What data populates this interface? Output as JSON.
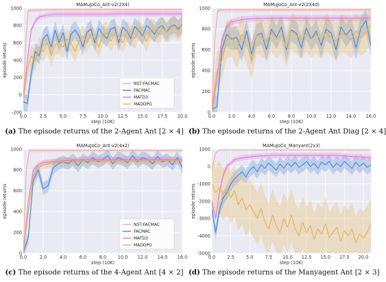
{
  "colors": {
    "nst": "#f4a9a8",
    "facmac": "#4a86d8",
    "matd3": "#e377e2",
    "maddpg": "#e6b24e"
  },
  "chart_data": [
    {
      "type": "line",
      "title": "MAMuJoCo_Ant-v2(2X4)",
      "xlabel": "step (10K)",
      "ylabel": "episode returns",
      "xlim": [
        0,
        20
      ],
      "ylim": [
        -200,
        1000
      ],
      "xticks": [
        "0.0",
        "2.5",
        "5.0",
        "7.5",
        "10.0",
        "12.5",
        "15.0",
        "17.5",
        "20.0"
      ],
      "xtick_values": [
        0,
        2.5,
        5,
        7.5,
        10,
        12.5,
        15,
        17.5,
        20
      ],
      "yticks": [
        "-200",
        "0",
        "200",
        "400",
        "600",
        "800",
        "1000"
      ],
      "ytick_values": [
        -200,
        0,
        200,
        400,
        600,
        800,
        1000
      ],
      "legend": "inside-right",
      "caption_letter": "(a)",
      "caption_text": " The episode returns of the 2-Agent Ant [2 × 4]",
      "series": [
        {
          "name": "NST-FACMAC",
          "color": "nst",
          "band": 20,
          "x": [
            0,
            0.3,
            0.6,
            1,
            2,
            4,
            6,
            8,
            10,
            12,
            14,
            16,
            18,
            20
          ],
          "y": [
            -50,
            600,
            970,
            975,
            980,
            985,
            985,
            985,
            985,
            985,
            985,
            985,
            985,
            985
          ]
        },
        {
          "name": "FACMAC",
          "color": "facmac",
          "band": 100,
          "x": [
            0,
            0.5,
            1,
            1.5,
            2,
            2.5,
            3,
            3.5,
            4,
            4.5,
            5,
            5.5,
            6,
            6.5,
            7,
            7.5,
            8,
            8.5,
            9,
            9.5,
            10,
            10.5,
            11,
            11.5,
            12,
            12.5,
            13,
            13.5,
            14,
            14.5,
            15,
            15.5,
            16,
            16.5,
            17,
            17.5,
            18,
            18.5,
            19,
            19.5,
            20
          ],
          "y": [
            -80,
            -100,
            250,
            500,
            450,
            650,
            700,
            550,
            750,
            600,
            720,
            500,
            700,
            750,
            680,
            550,
            720,
            760,
            600,
            770,
            700,
            650,
            760,
            780,
            600,
            780,
            740,
            650,
            790,
            740,
            680,
            800,
            760,
            700,
            780,
            800,
            720,
            790,
            810,
            760,
            820
          ]
        },
        {
          "name": "MATD3",
          "color": "matd3",
          "band": 30,
          "x": [
            0,
            0.5,
            1,
            1.5,
            2,
            3,
            4,
            6,
            8,
            10,
            12,
            14,
            16,
            18,
            20
          ],
          "y": [
            -60,
            400,
            750,
            850,
            900,
            920,
            930,
            930,
            930,
            930,
            935,
            935,
            935,
            935,
            935
          ]
        },
        {
          "name": "MADDPG",
          "color": "maddpg",
          "band": 120,
          "x": [
            0,
            0.5,
            1,
            1.5,
            2,
            2.5,
            3,
            3.5,
            4,
            4.5,
            5,
            5.5,
            6,
            6.5,
            7,
            7.5,
            8,
            8.5,
            9,
            9.5,
            10,
            10.5,
            11,
            11.5,
            12,
            12.5,
            13,
            13.5,
            14,
            14.5,
            15,
            15.5,
            16,
            16.5,
            17,
            17.5,
            18,
            18.5,
            19,
            19.5,
            20
          ],
          "y": [
            -60,
            300,
            450,
            400,
            550,
            500,
            600,
            450,
            580,
            600,
            550,
            650,
            600,
            500,
            620,
            680,
            600,
            700,
            650,
            550,
            700,
            720,
            620,
            700,
            680,
            600,
            720,
            700,
            650,
            760,
            700,
            620,
            760,
            740,
            700,
            780,
            720,
            760,
            800,
            740,
            820
          ]
        }
      ]
    },
    {
      "type": "line",
      "title": "MAMuJoCo_Ant-v2(2X4d)",
      "xlabel": "step (10K)",
      "ylabel": "episode returns",
      "xlim": [
        0,
        16
      ],
      "ylim": [
        0,
        1000
      ],
      "xticks": [
        "0.0",
        "2.0",
        "4.0",
        "6.0",
        "8.0",
        "10.0",
        "12.0",
        "14.0",
        "16.0"
      ],
      "xtick_values": [
        0,
        2,
        4,
        6,
        8,
        10,
        12,
        14,
        16
      ],
      "yticks": [
        "0",
        "200",
        "400",
        "600",
        "800",
        "1000"
      ],
      "ytick_values": [
        0,
        200,
        400,
        600,
        800,
        1000
      ],
      "caption_letter": "(b)",
      "caption_text": " The episode returns of the 2-Agent Ant Diag [2 × 4]",
      "series": [
        {
          "name": "NST-FACMAC",
          "color": "nst",
          "band": 20,
          "x": [
            0,
            0.3,
            0.6,
            1,
            2,
            4,
            6,
            8,
            10,
            12,
            14,
            16
          ],
          "y": [
            50,
            700,
            980,
            985,
            985,
            985,
            985,
            985,
            985,
            985,
            985,
            985
          ]
        },
        {
          "name": "FACMAC",
          "color": "facmac",
          "band": 110,
          "x": [
            0,
            0.5,
            1,
            1.5,
            2,
            2.5,
            3,
            3.5,
            4,
            4.5,
            5,
            5.5,
            6,
            6.5,
            7,
            7.5,
            8,
            8.5,
            9,
            9.5,
            10,
            10.5,
            11,
            11.5,
            12,
            12.5,
            13,
            13.5,
            14,
            14.5,
            15,
            15.5,
            16
          ],
          "y": [
            30,
            50,
            600,
            750,
            700,
            720,
            600,
            780,
            560,
            740,
            760,
            600,
            800,
            720,
            820,
            600,
            790,
            760,
            620,
            810,
            700,
            780,
            640,
            800,
            760,
            600,
            820,
            740,
            800,
            620,
            810,
            880,
            640
          ]
        },
        {
          "name": "MATD3",
          "color": "matd3",
          "band": 30,
          "x": [
            0,
            0.5,
            1,
            1.5,
            2,
            3,
            4,
            6,
            8,
            10,
            12,
            14,
            16
          ],
          "y": [
            20,
            300,
            700,
            820,
            870,
            890,
            900,
            905,
            905,
            905,
            905,
            905,
            905
          ]
        },
        {
          "name": "MADDPG",
          "color": "maddpg",
          "band": 180,
          "x": [
            0,
            0.5,
            1,
            1.5,
            2,
            2.5,
            3,
            3.5,
            4,
            4.5,
            5,
            5.5,
            6,
            6.5,
            7,
            7.5,
            8,
            8.5,
            9,
            9.5,
            10,
            10.5,
            11,
            11.5,
            12,
            12.5,
            13,
            13.5,
            14,
            14.5,
            15,
            15.5,
            16
          ],
          "y": [
            20,
            400,
            500,
            700,
            720,
            600,
            750,
            650,
            500,
            740,
            720,
            680,
            760,
            700,
            750,
            620,
            780,
            740,
            700,
            760,
            700,
            750,
            690,
            770,
            720,
            680,
            760,
            740,
            700,
            780,
            720,
            760,
            840
          ]
        }
      ]
    },
    {
      "type": "line",
      "title": "MAMuJoCo_Ant-v2(4x2)",
      "xlabel": "step (10K)",
      "ylabel": "episode returns",
      "xlim": [
        0,
        16
      ],
      "ylim": [
        0,
        1000
      ],
      "xticks": [
        "0.0",
        "2.0",
        "4.0",
        "6.0",
        "8.0",
        "10.0",
        "12.0",
        "14.0",
        "16.0"
      ],
      "xtick_values": [
        0,
        2,
        4,
        6,
        8,
        10,
        12,
        14,
        16
      ],
      "yticks": [
        "0",
        "200",
        "400",
        "600",
        "800",
        "1000"
      ],
      "ytick_values": [
        0,
        200,
        400,
        600,
        800,
        1000
      ],
      "legend": "inside-right",
      "caption_letter": "(c)",
      "caption_text": " The episode returns of the 4-Agent Ant [4 × 2]",
      "series": [
        {
          "name": "NST-FACMAC",
          "color": "nst",
          "band": 20,
          "x": [
            0,
            0.3,
            0.6,
            1,
            2,
            4,
            6,
            8,
            10,
            12,
            14,
            16
          ],
          "y": [
            20,
            800,
            990,
            990,
            990,
            990,
            990,
            990,
            990,
            990,
            990,
            990
          ]
        },
        {
          "name": "FACMAC",
          "color": "facmac",
          "band": 60,
          "x": [
            0,
            0.5,
            1,
            1.5,
            2,
            2.5,
            3,
            3.5,
            4,
            4.5,
            5,
            5.5,
            6,
            6.5,
            7,
            7.5,
            8,
            8.5,
            9,
            9.5,
            10,
            10.5,
            11,
            11.5,
            12,
            12.5,
            13,
            13.5,
            14,
            14.5,
            15,
            15.5,
            16
          ],
          "y": [
            10,
            150,
            700,
            800,
            620,
            650,
            820,
            860,
            880,
            860,
            900,
            840,
            900,
            870,
            920,
            880,
            900,
            940,
            860,
            920,
            900,
            870,
            940,
            880,
            920,
            900,
            860,
            930,
            880,
            900,
            850,
            920,
            820
          ]
        },
        {
          "name": "MATD3",
          "color": "matd3",
          "band": 25,
          "x": [
            0,
            0.5,
            1,
            1.5,
            2,
            3,
            4,
            6,
            8,
            10,
            12,
            14,
            16
          ],
          "y": [
            10,
            500,
            800,
            850,
            870,
            880,
            890,
            900,
            900,
            900,
            900,
            900,
            900
          ]
        },
        {
          "name": "MADDPG",
          "color": "maddpg",
          "band": 40,
          "x": [
            0,
            0.5,
            1,
            1.5,
            2,
            3,
            4,
            5,
            6,
            8,
            10,
            12,
            14,
            16
          ],
          "y": [
            10,
            400,
            750,
            820,
            850,
            870,
            880,
            880,
            890,
            890,
            890,
            890,
            890,
            890
          ]
        }
      ]
    },
    {
      "type": "line",
      "title": "MAMuJoCo_Manyant(2x3)",
      "xlabel": "step (10K)",
      "ylabel": "episode returns",
      "xlim": [
        0,
        21
      ],
      "ylim": [
        -5000,
        1000
      ],
      "xticks": [
        "0.0",
        "2.5",
        "5.0",
        "7.5",
        "10.0",
        "12.5",
        "15.0",
        "17.5",
        "20.0"
      ],
      "xtick_values": [
        0,
        2.5,
        5,
        7.5,
        10,
        12.5,
        15,
        17.5,
        20
      ],
      "yticks": [
        "-5000",
        "-4000",
        "-3000",
        "-2000",
        "-1000",
        "0",
        "1000"
      ],
      "ytick_values": [
        -5000,
        -4000,
        -3000,
        -2000,
        -1000,
        0,
        1000
      ],
      "caption_letter": "(d)",
      "caption_text": " The episode returns of the Manyagent Ant [2 × 3]",
      "series": [
        {
          "name": "NST-FACMAC",
          "color": "nst",
          "band": 40,
          "x": [
            0,
            0.5,
            1,
            2,
            4,
            6,
            8,
            10,
            12,
            14,
            16,
            18,
            20,
            21
          ],
          "y": [
            -200,
            800,
            950,
            960,
            960,
            960,
            960,
            960,
            960,
            960,
            960,
            960,
            960,
            960
          ]
        },
        {
          "name": "FACMAC",
          "color": "facmac",
          "band": 400,
          "x": [
            0,
            0.5,
            1,
            1.5,
            2,
            2.5,
            3,
            3.5,
            4,
            4.5,
            5,
            5.5,
            6,
            6.5,
            7,
            7.5,
            8,
            8.5,
            9,
            9.5,
            10,
            10.5,
            11,
            11.5,
            12,
            12.5,
            13,
            13.5,
            14,
            14.5,
            15,
            15.5,
            16,
            16.5,
            17,
            17.5,
            18,
            18.5,
            19,
            19.5,
            20,
            20.5,
            21
          ],
          "y": [
            -2500,
            -3800,
            -2500,
            -1800,
            -1500,
            -1000,
            -700,
            -500,
            -300,
            -600,
            -200,
            0,
            -300,
            100,
            -100,
            200,
            0,
            -200,
            150,
            -100,
            200,
            0,
            250,
            -50,
            100,
            300,
            0,
            200,
            -100,
            250,
            100,
            300,
            -50,
            200,
            0,
            300,
            100,
            -100,
            250,
            0,
            200,
            -50,
            100
          ]
        },
        {
          "name": "MATD3",
          "color": "matd3",
          "band": 150,
          "x": [
            0,
            0.5,
            1,
            1.5,
            2,
            2.5,
            3,
            4,
            5,
            6,
            8,
            10,
            12,
            14,
            16,
            18,
            20,
            21
          ],
          "y": [
            -2000,
            -3000,
            -1500,
            -500,
            0,
            200,
            400,
            500,
            550,
            600,
            650,
            650,
            650,
            650,
            650,
            600,
            550,
            500
          ]
        },
        {
          "name": "MADDPG",
          "color": "maddpg",
          "band": 1500,
          "x": [
            0,
            0.5,
            1,
            1.5,
            2,
            2.5,
            3,
            3.5,
            4,
            4.5,
            5,
            5.5,
            6,
            6.5,
            7,
            7.5,
            8,
            8.5,
            9,
            9.5,
            10,
            10.5,
            11,
            11.5,
            12,
            12.5,
            13,
            13.5,
            14,
            14.5,
            15,
            15.5,
            16,
            16.5,
            17,
            17.5,
            18,
            18.5,
            19,
            19.5,
            20,
            20.5,
            21
          ],
          "y": [
            -1000,
            -1500,
            -1200,
            -1600,
            -1300,
            -1800,
            -1400,
            -2200,
            -1800,
            -2500,
            -2200,
            -2600,
            -3000,
            -2400,
            -3200,
            -3600,
            -2800,
            -3400,
            -3800,
            -3000,
            -3500,
            -2800,
            -3600,
            -4000,
            -3200,
            -3800,
            -3400,
            -4200,
            -3600,
            -3900,
            -3300,
            -4100,
            -3800,
            -3500,
            -4300,
            -3700,
            -4000,
            -3600,
            -4400,
            -3900,
            -4100,
            -3800,
            -3300
          ]
        }
      ]
    }
  ]
}
